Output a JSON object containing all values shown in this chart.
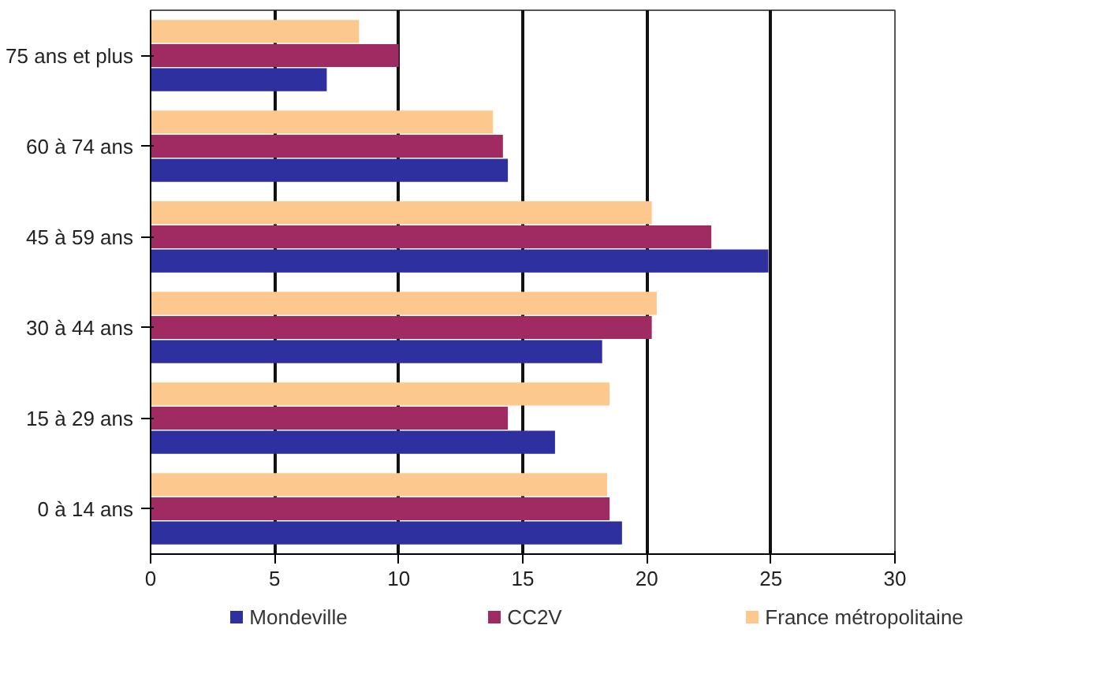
{
  "chart_data": {
    "type": "bar",
    "orientation": "horizontal",
    "categories": [
      "75 ans et plus",
      "60 à 74 ans",
      "45 à 59 ans",
      "30 à 44 ans",
      "15 à 29 ans",
      "0 à 14 ans"
    ],
    "series": [
      {
        "name": "Mondeville",
        "color": "#2e30a0",
        "values": [
          7.1,
          14.4,
          24.9,
          18.2,
          16.3,
          19.0
        ]
      },
      {
        "name": "CC2V",
        "color": "#a02a62",
        "values": [
          10.0,
          14.2,
          22.6,
          20.2,
          14.4,
          18.5
        ]
      },
      {
        "name": "France métropolitaine",
        "color": "#fcc88e",
        "values": [
          8.4,
          13.8,
          20.2,
          20.4,
          18.5,
          18.4
        ]
      }
    ],
    "xlim": [
      0,
      30
    ],
    "xticks": [
      0,
      5,
      10,
      15,
      20,
      25,
      30
    ],
    "grid": "x",
    "legend": "bottom"
  }
}
